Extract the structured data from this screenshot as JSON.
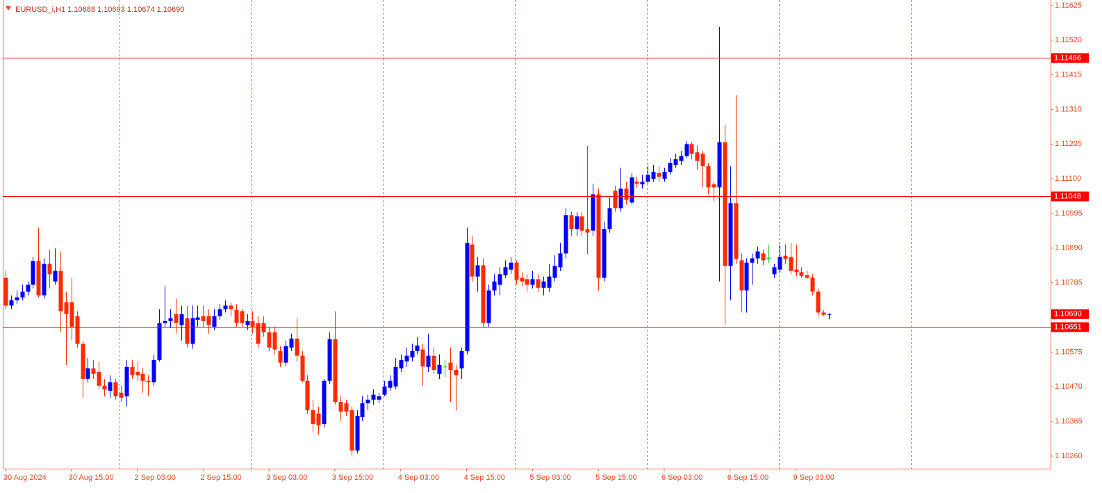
{
  "chart_data": {
    "type": "candlestick",
    "title": "EURUSD_i,H1  1.10688 1.10693 1.10674 1.10690",
    "categories": [
      "30 Aug 2024",
      null,
      null,
      null,
      null,
      null,
      null,
      null,
      null,
      null,
      null,
      null,
      "30 Aug 15:00",
      null,
      null,
      null,
      null,
      null,
      null,
      null,
      null,
      null,
      null,
      null,
      "2 Sep 03:00",
      null,
      null,
      null,
      null,
      null,
      null,
      null,
      null,
      null,
      null,
      null,
      "2 Sep 15:00",
      null,
      null,
      null,
      null,
      null,
      null,
      null,
      null,
      null,
      null,
      null,
      "3 Sep 03:00",
      null,
      null,
      null,
      null,
      null,
      null,
      null,
      null,
      null,
      null,
      null,
      "3 Sep 15:00",
      null,
      null,
      null,
      null,
      null,
      null,
      null,
      null,
      null,
      null,
      null,
      "4 Sep 03:00",
      null,
      null,
      null,
      null,
      null,
      null,
      null,
      null,
      null,
      null,
      null,
      "4 Sep 15:00",
      null,
      null,
      null,
      null,
      null,
      null,
      null,
      null,
      null,
      null,
      null,
      "5 Sep 03:00",
      null,
      null,
      null,
      null,
      null,
      null,
      null,
      null,
      null,
      null,
      null,
      "5 Sep 15:00",
      null,
      null,
      null,
      null,
      null,
      null,
      null,
      null,
      null,
      null,
      null,
      "6 Sep 03:00",
      null,
      null,
      null,
      null,
      null,
      null,
      null,
      null,
      null,
      null,
      null,
      "6 Sep 15:00",
      null,
      null,
      null,
      null,
      null,
      null,
      null,
      null,
      null,
      null,
      null,
      "9 Sep 03:00",
      null,
      null,
      null,
      null,
      null,
      null
    ],
    "open": [
      1.108,
      1.10716,
      1.10732,
      1.10741,
      1.10758,
      1.10779,
      1.10851,
      1.10747,
      1.10842,
      1.10789,
      1.10821,
      1.10726,
      1.10726,
      1.10684,
      1.106,
      1.10494,
      1.10526,
      1.10515,
      1.10473,
      1.10458,
      1.10484,
      1.10452,
      1.10441,
      1.1053,
      1.10515,
      1.10509,
      1.10488,
      1.10484,
      1.10551,
      1.10663,
      1.10669,
      1.1069,
      1.10657,
      1.10678,
      1.106,
      1.10673,
      1.10684,
      1.10684,
      1.10652,
      1.10684,
      1.10705,
      1.10716,
      1.10703,
      1.10699,
      1.10657,
      1.10669,
      1.10663,
      1.10663,
      1.10635,
      1.10635,
      1.10578,
      1.10543,
      1.10589,
      1.10616,
      1.10564,
      1.10488,
      1.10399,
      1.10389,
      1.10357,
      1.10488,
      1.10614,
      1.10424,
      1.1042,
      1.10399,
      1.10277,
      1.10378,
      1.1042,
      1.10431,
      1.10431,
      1.10446,
      1.10467,
      1.10471,
      1.10526,
      1.10547,
      1.10559,
      1.10578,
      1.10583,
      1.1053,
      1.10564,
      1.10509,
      1.1053,
      1.10543,
      1.10521,
      1.10526,
      1.10578,
      1.10901,
      1.10804,
      1.10838,
      1.10663,
      1.10762,
      1.10779,
      1.10808,
      1.10825,
      1.10846,
      1.108,
      1.10796,
      1.10779,
      1.10796,
      1.1077,
      1.1077,
      1.108,
      1.10832,
      1.10874,
      1.1099,
      1.10948,
      1.10986,
      1.10948,
      1.10943,
      1.11053,
      1.108,
      1.10948,
      1.11064,
      1.11011,
      1.1107,
      1.11028,
      1.11091,
      1.11083,
      1.11091,
      1.111,
      1.11117,
      1.111,
      1.11121,
      1.11142,
      1.11154,
      1.11169,
      1.11205,
      1.1118,
      1.11176,
      1.11138,
      1.11083,
      1.11074,
      1.11211,
      1.10836,
      1.11026,
      1.10853,
      1.10762,
      1.10846,
      1.10859,
      1.10874,
      1.10859,
      1.10811,
      1.10825,
      1.10867,
      1.10863,
      1.10825,
      1.10817,
      1.10808,
      1.108,
      1.10758,
      1.10695,
      1.10688
    ],
    "high": [
      1.10821,
      1.10747,
      1.10762,
      1.10779,
      1.10789,
      1.10863,
      1.10952,
      1.10859,
      1.10884,
      1.10889,
      1.1088,
      1.10758,
      1.108,
      1.10699,
      1.1061,
      1.10557,
      1.10551,
      1.10547,
      1.10494,
      1.10505,
      1.10494,
      1.10473,
      1.10551,
      1.10551,
      1.10547,
      1.10526,
      1.10505,
      1.10568,
      1.10705,
      1.10775,
      1.10705,
      1.10737,
      1.10716,
      1.10716,
      1.10716,
      1.10716,
      1.10716,
      1.10705,
      1.10705,
      1.1072,
      1.10732,
      1.10726,
      1.1072,
      1.10705,
      1.1069,
      1.10699,
      1.10684,
      1.10684,
      1.10652,
      1.10652,
      1.10593,
      1.1061,
      1.10631,
      1.10678,
      1.10578,
      1.10505,
      1.10431,
      1.1041,
      1.10494,
      1.10635,
      1.10699,
      1.10441,
      1.10431,
      1.1041,
      1.10399,
      1.10441,
      1.10446,
      1.10462,
      1.10452,
      1.10488,
      1.10505,
      1.10557,
      1.10568,
      1.10589,
      1.106,
      1.10621,
      1.106,
      1.10631,
      1.10589,
      1.10568,
      1.10551,
      1.10589,
      1.10536,
      1.10589,
      1.10952,
      1.10927,
      1.10863,
      1.10859,
      1.10779,
      1.10811,
      1.10832,
      1.10853,
      1.10863,
      1.10853,
      1.10817,
      1.10811,
      1.10821,
      1.10811,
      1.10804,
      1.10842,
      1.10868,
      1.10906,
      1.11011,
      1.11,
      1.11,
      1.11,
      1.11199,
      1.11085,
      1.1107,
      1.10969,
      1.11043,
      1.11079,
      1.11133,
      1.11091,
      1.11117,
      1.11106,
      1.11112,
      1.11138,
      1.11142,
      1.11138,
      1.11133,
      1.11163,
      1.11176,
      1.11184,
      1.11214,
      1.11211,
      1.11201,
      1.11184,
      1.11148,
      1.11091,
      1.1156,
      1.11264,
      1.11138,
      1.11353,
      1.10874,
      1.10859,
      1.10874,
      1.10895,
      1.10884,
      1.10901,
      1.10842,
      1.10901,
      1.10901,
      1.10906,
      1.10901,
      1.10832,
      1.10821,
      1.10811,
      1.10768,
      1.10703,
      1.10693
    ],
    "low": [
      1.10705,
      1.10705,
      1.1072,
      1.10732,
      1.10747,
      1.10768,
      1.10741,
      1.10737,
      1.10768,
      1.10779,
      1.10635,
      1.10536,
      1.1061,
      1.10589,
      1.10437,
      1.10484,
      1.10494,
      1.10462,
      1.10441,
      1.10437,
      1.10431,
      1.10424,
      1.1041,
      1.10494,
      1.10488,
      1.10452,
      1.10441,
      1.10473,
      1.10547,
      1.10652,
      1.10648,
      1.10631,
      1.1061,
      1.10589,
      1.10585,
      1.10652,
      1.10652,
      1.10631,
      1.10642,
      1.10673,
      1.10695,
      1.10684,
      1.10652,
      1.10652,
      1.10642,
      1.10631,
      1.10589,
      1.10621,
      1.10578,
      1.10568,
      1.1053,
      1.10534,
      1.10578,
      1.10547,
      1.10484,
      1.10389,
      1.10332,
      1.10325,
      1.10346,
      1.10479,
      1.10416,
      1.10367,
      1.10382,
      1.10262,
      1.10268,
      1.10367,
      1.10399,
      1.10416,
      1.1042,
      1.10441,
      1.10458,
      1.10462,
      1.10515,
      1.1053,
      1.10547,
      1.10568,
      1.10473,
      1.10515,
      1.10509,
      1.10494,
      1.105,
      1.10424,
      1.10399,
      1.10494,
      1.10568,
      1.10789,
      1.10758,
      1.10652,
      1.10652,
      1.10747,
      1.10747,
      1.108,
      1.10811,
      1.10779,
      1.10775,
      1.10758,
      1.10768,
      1.10758,
      1.10747,
      1.10758,
      1.10789,
      1.10821,
      1.10859,
      1.10927,
      1.10927,
      1.10927,
      1.10872,
      1.10927,
      1.10762,
      1.10789,
      1.10937,
      1.11,
      1.11,
      1.11022,
      1.11022,
      1.11074,
      1.1107,
      1.11085,
      1.11091,
      1.11091,
      1.11091,
      1.11112,
      1.11133,
      1.11142,
      1.11163,
      1.11159,
      1.11127,
      1.11074,
      1.11053,
      1.11032,
      1.10789,
      1.10657,
      1.10732,
      1.10842,
      1.10695,
      1.10695,
      1.10779,
      1.10842,
      1.10838,
      1.10846,
      1.108,
      1.10817,
      1.10842,
      1.10811,
      1.10804,
      1.108,
      1.10796,
      1.10747,
      1.10684,
      1.10684,
      1.10674
    ],
    "close": [
      1.10716,
      1.10732,
      1.10741,
      1.10758,
      1.10779,
      1.10851,
      1.10747,
      1.10842,
      1.10811,
      1.10821,
      1.10699,
      1.1069,
      1.10652,
      1.106,
      1.10494,
      1.10526,
      1.10509,
      1.10473,
      1.10462,
      1.10484,
      1.10441,
      1.10437,
      1.1053,
      1.10505,
      1.10505,
      1.10488,
      1.10484,
      1.10551,
      1.10663,
      1.10669,
      1.10678,
      1.10663,
      1.1069,
      1.106,
      1.10678,
      1.1068,
      1.10669,
      1.10657,
      1.10684,
      1.10705,
      1.10716,
      1.10705,
      1.10663,
      1.10663,
      1.10669,
      1.10652,
      1.106,
      1.10635,
      1.10589,
      1.10583,
      1.10543,
      1.10593,
      1.10616,
      1.10564,
      1.10488,
      1.10399,
      1.10357,
      1.10353,
      1.10488,
      1.10614,
      1.10424,
      1.10395,
      1.10395,
      1.10277,
      1.10382,
      1.1042,
      1.10431,
      1.10446,
      1.10441,
      1.10471,
      1.10488,
      1.1053,
      1.10551,
      1.10564,
      1.10578,
      1.10595,
      1.10532,
      1.10564,
      1.10521,
      1.10536,
      1.1053,
      1.10521,
      1.10505,
      1.10578,
      1.10906,
      1.10804,
      1.10838,
      1.10663,
      1.10762,
      1.10789,
      1.10811,
      1.10832,
      1.10846,
      1.10794,
      1.10789,
      1.10779,
      1.10796,
      1.1077,
      1.10789,
      1.10804,
      1.10836,
      1.10874,
      1.1099,
      1.10948,
      1.10986,
      1.10943,
      1.10937,
      1.11053,
      1.108,
      1.10948,
      1.11011,
      1.11011,
      1.1107,
      1.11036,
      1.11104,
      1.11085,
      1.11091,
      1.11112,
      1.11121,
      1.11106,
      1.11121,
      1.11148,
      1.11159,
      1.11169,
      1.11205,
      1.11176,
      1.11154,
      1.11138,
      1.11074,
      1.11074,
      1.11211,
      1.10836,
      1.11026,
      1.10857,
      1.10762,
      1.10846,
      1.10859,
      1.1088,
      1.10853,
      1.10859,
      1.10832,
      1.10863,
      1.10857,
      1.10821,
      1.10817,
      1.10806,
      1.108,
      1.10758,
      1.10695,
      1.10688,
      1.1069
    ],
    "up_color": "#0000ff",
    "down_color": "#ff2a00",
    "doji_color": "#00c800",
    "ylim": [
      1.10222,
      1.11631
    ],
    "yticks": [
      1.11625,
      {
        "value": 1.1152,
        "label": "1.11520"
      },
      1.11415,
      {
        "value": 1.1131,
        "label": "1.11310"
      },
      1.11205,
      {
        "value": 1.111,
        "label": "1.11100"
      },
      1.10995,
      {
        "value": 1.1089,
        "label": "1.10890"
      },
      1.10785,
      1.10575,
      {
        "value": 1.1047,
        "label": "1.10470"
      },
      1.10365,
      {
        "value": 1.1026,
        "label": "1.10260"
      }
    ],
    "levels": [
      1.11466,
      1.11048,
      1.10651
    ],
    "level_color": "#ff0000",
    "price_tag": {
      "value": 1.1069,
      "label": "1.10690"
    }
  }
}
